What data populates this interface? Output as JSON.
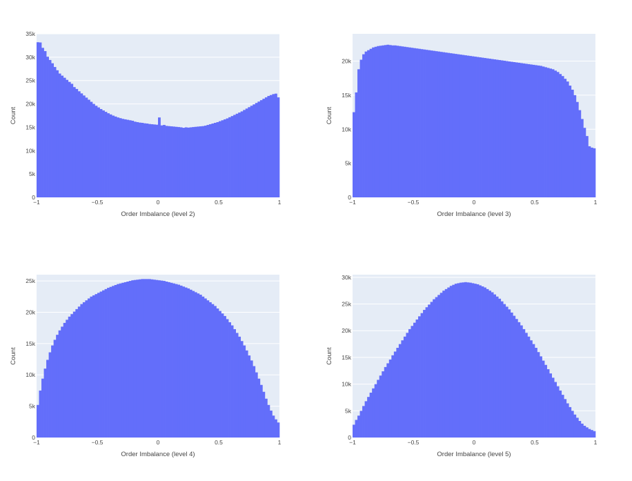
{
  "colors": {
    "bar": "#636efa",
    "plot_bg": "#e5ecf6",
    "grid": "#ffffff",
    "text": "#444444"
  },
  "chart_data": [
    {
      "type": "bar",
      "title": "",
      "xlabel": "Order Imbalance (level 2)",
      "ylabel": "Count",
      "xlim": [
        -1,
        1
      ],
      "ylim": [
        0,
        35000
      ],
      "grid": true,
      "x_ticks": [
        {
          "v": -1,
          "t": "−1"
        },
        {
          "v": -0.5,
          "t": "−0.5"
        },
        {
          "v": 0,
          "t": "0"
        },
        {
          "v": 0.5,
          "t": "0.5"
        },
        {
          "v": 1,
          "t": "1"
        }
      ],
      "y_ticks": [
        {
          "v": 0,
          "t": "0"
        },
        {
          "v": 5000,
          "t": "5k"
        },
        {
          "v": 10000,
          "t": "10k"
        },
        {
          "v": 15000,
          "t": "15k"
        },
        {
          "v": 20000,
          "t": "20k"
        },
        {
          "v": 25000,
          "t": "25k"
        },
        {
          "v": 30000,
          "t": "30k"
        },
        {
          "v": 35000,
          "t": "35k"
        }
      ],
      "bins": 100,
      "values": [
        33200,
        33150,
        32000,
        31300,
        30100,
        29400,
        28700,
        27900,
        27200,
        26500,
        26050,
        25600,
        25150,
        24700,
        24300,
        23600,
        23200,
        22700,
        22250,
        21800,
        21350,
        20900,
        20450,
        20000,
        19600,
        19250,
        18900,
        18600,
        18300,
        18000,
        17750,
        17500,
        17300,
        17100,
        16950,
        16800,
        16700,
        16600,
        16500,
        16400,
        16200,
        16100,
        16000,
        15950,
        15850,
        15800,
        15700,
        15650,
        15600,
        15550,
        17100,
        15400,
        15500,
        15300,
        15250,
        15200,
        15150,
        15100,
        15050,
        15000,
        14900,
        15000,
        14950,
        15000,
        15050,
        15100,
        15150,
        15200,
        15250,
        15350,
        15500,
        15650,
        15800,
        15950,
        16100,
        16300,
        16500,
        16700,
        16900,
        17150,
        17400,
        17650,
        17900,
        18150,
        18400,
        18700,
        19000,
        19300,
        19600,
        19900,
        20200,
        20500,
        20800,
        21100,
        21400,
        21700,
        21900,
        22100,
        22200,
        21400
      ]
    },
    {
      "type": "bar",
      "title": "",
      "xlabel": "Order Imbalance (level 3)",
      "ylabel": "Count",
      "xlim": [
        -1,
        1
      ],
      "ylim": [
        0,
        24000
      ],
      "grid": true,
      "x_ticks": [
        {
          "v": -1,
          "t": "−1"
        },
        {
          "v": -0.5,
          "t": "−0.5"
        },
        {
          "v": 0,
          "t": "0"
        },
        {
          "v": 0.5,
          "t": "0.5"
        },
        {
          "v": 1,
          "t": "1"
        }
      ],
      "y_ticks": [
        {
          "v": 0,
          "t": "0"
        },
        {
          "v": 5000,
          "t": "5k"
        },
        {
          "v": 10000,
          "t": "10k"
        },
        {
          "v": 15000,
          "t": "15k"
        },
        {
          "v": 20000,
          "t": "20k"
        }
      ],
      "bins": 100,
      "values": [
        12500,
        15400,
        18800,
        20200,
        21000,
        21400,
        21600,
        21800,
        22000,
        22100,
        22200,
        22250,
        22300,
        22350,
        22400,
        22350,
        22300,
        22300,
        22250,
        22200,
        22150,
        22100,
        22050,
        22000,
        21950,
        21900,
        21850,
        21800,
        21750,
        21700,
        21650,
        21600,
        21550,
        21500,
        21450,
        21400,
        21350,
        21300,
        21250,
        21200,
        21150,
        21100,
        21050,
        21000,
        20950,
        20900,
        20850,
        20800,
        20750,
        20700,
        20650,
        20600,
        20550,
        20500,
        20450,
        20400,
        20350,
        20300,
        20250,
        20200,
        20150,
        20100,
        20050,
        20000,
        19950,
        19900,
        19850,
        19800,
        19750,
        19700,
        19650,
        19600,
        19550,
        19500,
        19450,
        19400,
        19350,
        19300,
        19200,
        19100,
        19000,
        18900,
        18800,
        18600,
        18400,
        18100,
        17800,
        17400,
        17000,
        16400,
        15800,
        15000,
        14000,
        12800,
        11500,
        10200,
        9000,
        7500,
        7300,
        7200
      ]
    },
    {
      "type": "bar",
      "title": "",
      "xlabel": "Order Imbalance (level 4)",
      "ylabel": "Count",
      "xlim": [
        -1,
        1
      ],
      "ylim": [
        0,
        26000
      ],
      "grid": true,
      "x_ticks": [
        {
          "v": -1,
          "t": "−1"
        },
        {
          "v": -0.5,
          "t": "−0.5"
        },
        {
          "v": 0,
          "t": "0"
        },
        {
          "v": 0.5,
          "t": "0.5"
        },
        {
          "v": 1,
          "t": "1"
        }
      ],
      "y_ticks": [
        {
          "v": 0,
          "t": "0"
        },
        {
          "v": 5000,
          "t": "5k"
        },
        {
          "v": 10000,
          "t": "10k"
        },
        {
          "v": 15000,
          "t": "15k"
        },
        {
          "v": 20000,
          "t": "20k"
        },
        {
          "v": 25000,
          "t": "25k"
        }
      ],
      "bins": 100,
      "values": [
        5200,
        7500,
        9400,
        11000,
        12400,
        13600,
        14700,
        15600,
        16400,
        17100,
        17700,
        18300,
        18800,
        19300,
        19700,
        20100,
        20500,
        20900,
        21300,
        21600,
        21900,
        22200,
        22500,
        22700,
        22900,
        23100,
        23300,
        23500,
        23700,
        23900,
        24050,
        24200,
        24350,
        24500,
        24600,
        24700,
        24800,
        24900,
        25000,
        25100,
        25150,
        25200,
        25250,
        25300,
        25300,
        25300,
        25300,
        25250,
        25200,
        25150,
        25100,
        25050,
        25000,
        24900,
        24800,
        24700,
        24600,
        24500,
        24400,
        24250,
        24100,
        23950,
        23800,
        23600,
        23400,
        23200,
        23000,
        22800,
        22500,
        22200,
        21900,
        21600,
        21300,
        21000,
        20600,
        20200,
        19800,
        19400,
        18900,
        18400,
        17900,
        17300,
        16700,
        16100,
        15400,
        14700,
        13900,
        13100,
        12300,
        11400,
        10400,
        9400,
        8400,
        7300,
        6200,
        5200,
        4300,
        3500,
        2900,
        2400
      ]
    },
    {
      "type": "bar",
      "title": "",
      "xlabel": "Order Imbalance (level 5)",
      "ylabel": "Count",
      "xlim": [
        -1,
        1
      ],
      "ylim": [
        0,
        30500
      ],
      "grid": true,
      "x_ticks": [
        {
          "v": -1,
          "t": "−1"
        },
        {
          "v": -0.5,
          "t": "−0.5"
        },
        {
          "v": 0,
          "t": "0"
        },
        {
          "v": 0.5,
          "t": "0.5"
        },
        {
          "v": 1,
          "t": "1"
        }
      ],
      "y_ticks": [
        {
          "v": 0,
          "t": "0"
        },
        {
          "v": 5000,
          "t": "5k"
        },
        {
          "v": 10000,
          "t": "10k"
        },
        {
          "v": 15000,
          "t": "15k"
        },
        {
          "v": 20000,
          "t": "20k"
        },
        {
          "v": 25000,
          "t": "25k"
        },
        {
          "v": 30000,
          "t": "30k"
        }
      ],
      "bins": 100,
      "values": [
        2400,
        3300,
        4100,
        5000,
        5900,
        6800,
        7600,
        8400,
        9200,
        10000,
        10800,
        11600,
        12400,
        13200,
        13900,
        14600,
        15400,
        16100,
        16800,
        17500,
        18200,
        18900,
        19600,
        20300,
        20900,
        21500,
        22100,
        22700,
        23300,
        23900,
        24400,
        24900,
        25400,
        25900,
        26300,
        26700,
        27100,
        27500,
        27800,
        28100,
        28400,
        28600,
        28800,
        28900,
        29000,
        29050,
        29100,
        29050,
        29000,
        28900,
        28800,
        28700,
        28500,
        28300,
        28100,
        27800,
        27500,
        27200,
        26800,
        26400,
        26000,
        25500,
        25000,
        24500,
        24000,
        23400,
        22800,
        22200,
        21600,
        21000,
        20300,
        19600,
        18900,
        18200,
        17500,
        16800,
        16000,
        15200,
        14400,
        13600,
        12800,
        12000,
        11200,
        10400,
        9600,
        8800,
        8000,
        7200,
        6400,
        5700,
        5000,
        4300,
        3700,
        3100,
        2600,
        2200,
        1900,
        1600,
        1400,
        1200
      ]
    }
  ]
}
